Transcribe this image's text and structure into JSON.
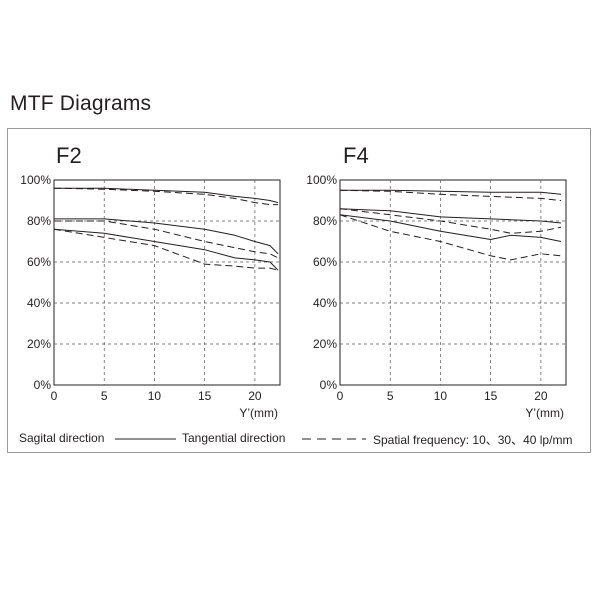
{
  "page": {
    "title": "MTF Diagrams"
  },
  "legend": {
    "sagittal_label": "Sagital direction",
    "tangential_label": "Tangential direction",
    "frequency_label": "Spatial frequency: 10、30、40 lp/mm"
  },
  "chart_data": [
    {
      "type": "line",
      "title": "F2",
      "xlabel": "Y’(mm)",
      "ylabel": "",
      "xlim": [
        0,
        22.5
      ],
      "ylim": [
        0,
        100
      ],
      "x_ticks": [
        0,
        5,
        10,
        15,
        20
      ],
      "x_tick_labels": [
        "0",
        "5",
        "10",
        "15",
        "20"
      ],
      "y_ticks": [
        0,
        20,
        40,
        60,
        80,
        100
      ],
      "y_tick_labels": [
        "0%",
        "20%",
        "40%",
        "60%",
        "80%",
        "100%"
      ],
      "grid": true,
      "series": [
        {
          "style": "solid",
          "x": [
            0,
            5,
            10,
            15,
            18,
            20,
            21.5,
            22.3
          ],
          "y": [
            96,
            96,
            95,
            94,
            92,
            91,
            90,
            89
          ]
        },
        {
          "style": "dashed",
          "x": [
            0,
            5,
            10,
            15,
            18,
            20,
            21.5,
            22.3
          ],
          "y": [
            96,
            95.5,
            94.5,
            93,
            91,
            89,
            88,
            88
          ]
        },
        {
          "style": "solid",
          "x": [
            0,
            5,
            10,
            15,
            18,
            20,
            21.5,
            22.3
          ],
          "y": [
            81,
            81,
            79,
            76,
            73,
            70,
            68,
            64
          ]
        },
        {
          "style": "dashed",
          "x": [
            0,
            5,
            10,
            15,
            18,
            20,
            21.5,
            22.3
          ],
          "y": [
            80,
            80,
            76,
            70,
            67,
            65,
            64,
            62
          ]
        },
        {
          "style": "solid",
          "x": [
            0,
            5,
            10,
            15,
            18,
            20,
            21.5,
            22.3
          ],
          "y": [
            76,
            74,
            70,
            66,
            62,
            61,
            60,
            56
          ]
        },
        {
          "style": "dashed",
          "x": [
            0,
            5,
            10,
            15,
            18,
            20,
            21.5,
            22.3
          ],
          "y": [
            76,
            72,
            68,
            59,
            58,
            57,
            57,
            56
          ]
        }
      ]
    },
    {
      "type": "line",
      "title": "F4",
      "xlabel": "Y’(mm)",
      "ylabel": "",
      "xlim": [
        0,
        22.5
      ],
      "ylim": [
        0,
        100
      ],
      "x_ticks": [
        0,
        5,
        10,
        15,
        20
      ],
      "x_tick_labels": [
        "0",
        "5",
        "10",
        "15",
        "20"
      ],
      "y_ticks": [
        0,
        20,
        40,
        60,
        80,
        100
      ],
      "y_tick_labels": [
        "0%",
        "20%",
        "40%",
        "60%",
        "80%",
        "100%"
      ],
      "grid": true,
      "series": [
        {
          "style": "solid",
          "x": [
            0,
            5,
            10,
            15,
            20,
            22
          ],
          "y": [
            95,
            95,
            94.5,
            94,
            94,
            93
          ]
        },
        {
          "style": "dashed",
          "x": [
            0,
            5,
            10,
            15,
            20,
            22
          ],
          "y": [
            95,
            94.5,
            93,
            92,
            91,
            90
          ]
        },
        {
          "style": "solid",
          "x": [
            0,
            5,
            10,
            15,
            20,
            22
          ],
          "y": [
            86,
            85,
            82,
            81,
            80,
            79
          ]
        },
        {
          "style": "dashed",
          "x": [
            0,
            5,
            10,
            15,
            17,
            20,
            22
          ],
          "y": [
            86,
            83,
            80,
            76,
            74,
            75,
            77
          ]
        },
        {
          "style": "solid",
          "x": [
            0,
            5,
            10,
            15,
            17,
            20,
            22
          ],
          "y": [
            83,
            80,
            75,
            71,
            73,
            72,
            70
          ]
        },
        {
          "style": "dashed",
          "x": [
            0,
            5,
            10,
            15,
            17,
            20,
            22
          ],
          "y": [
            83,
            75,
            70,
            63,
            61,
            64,
            63
          ]
        }
      ]
    }
  ]
}
